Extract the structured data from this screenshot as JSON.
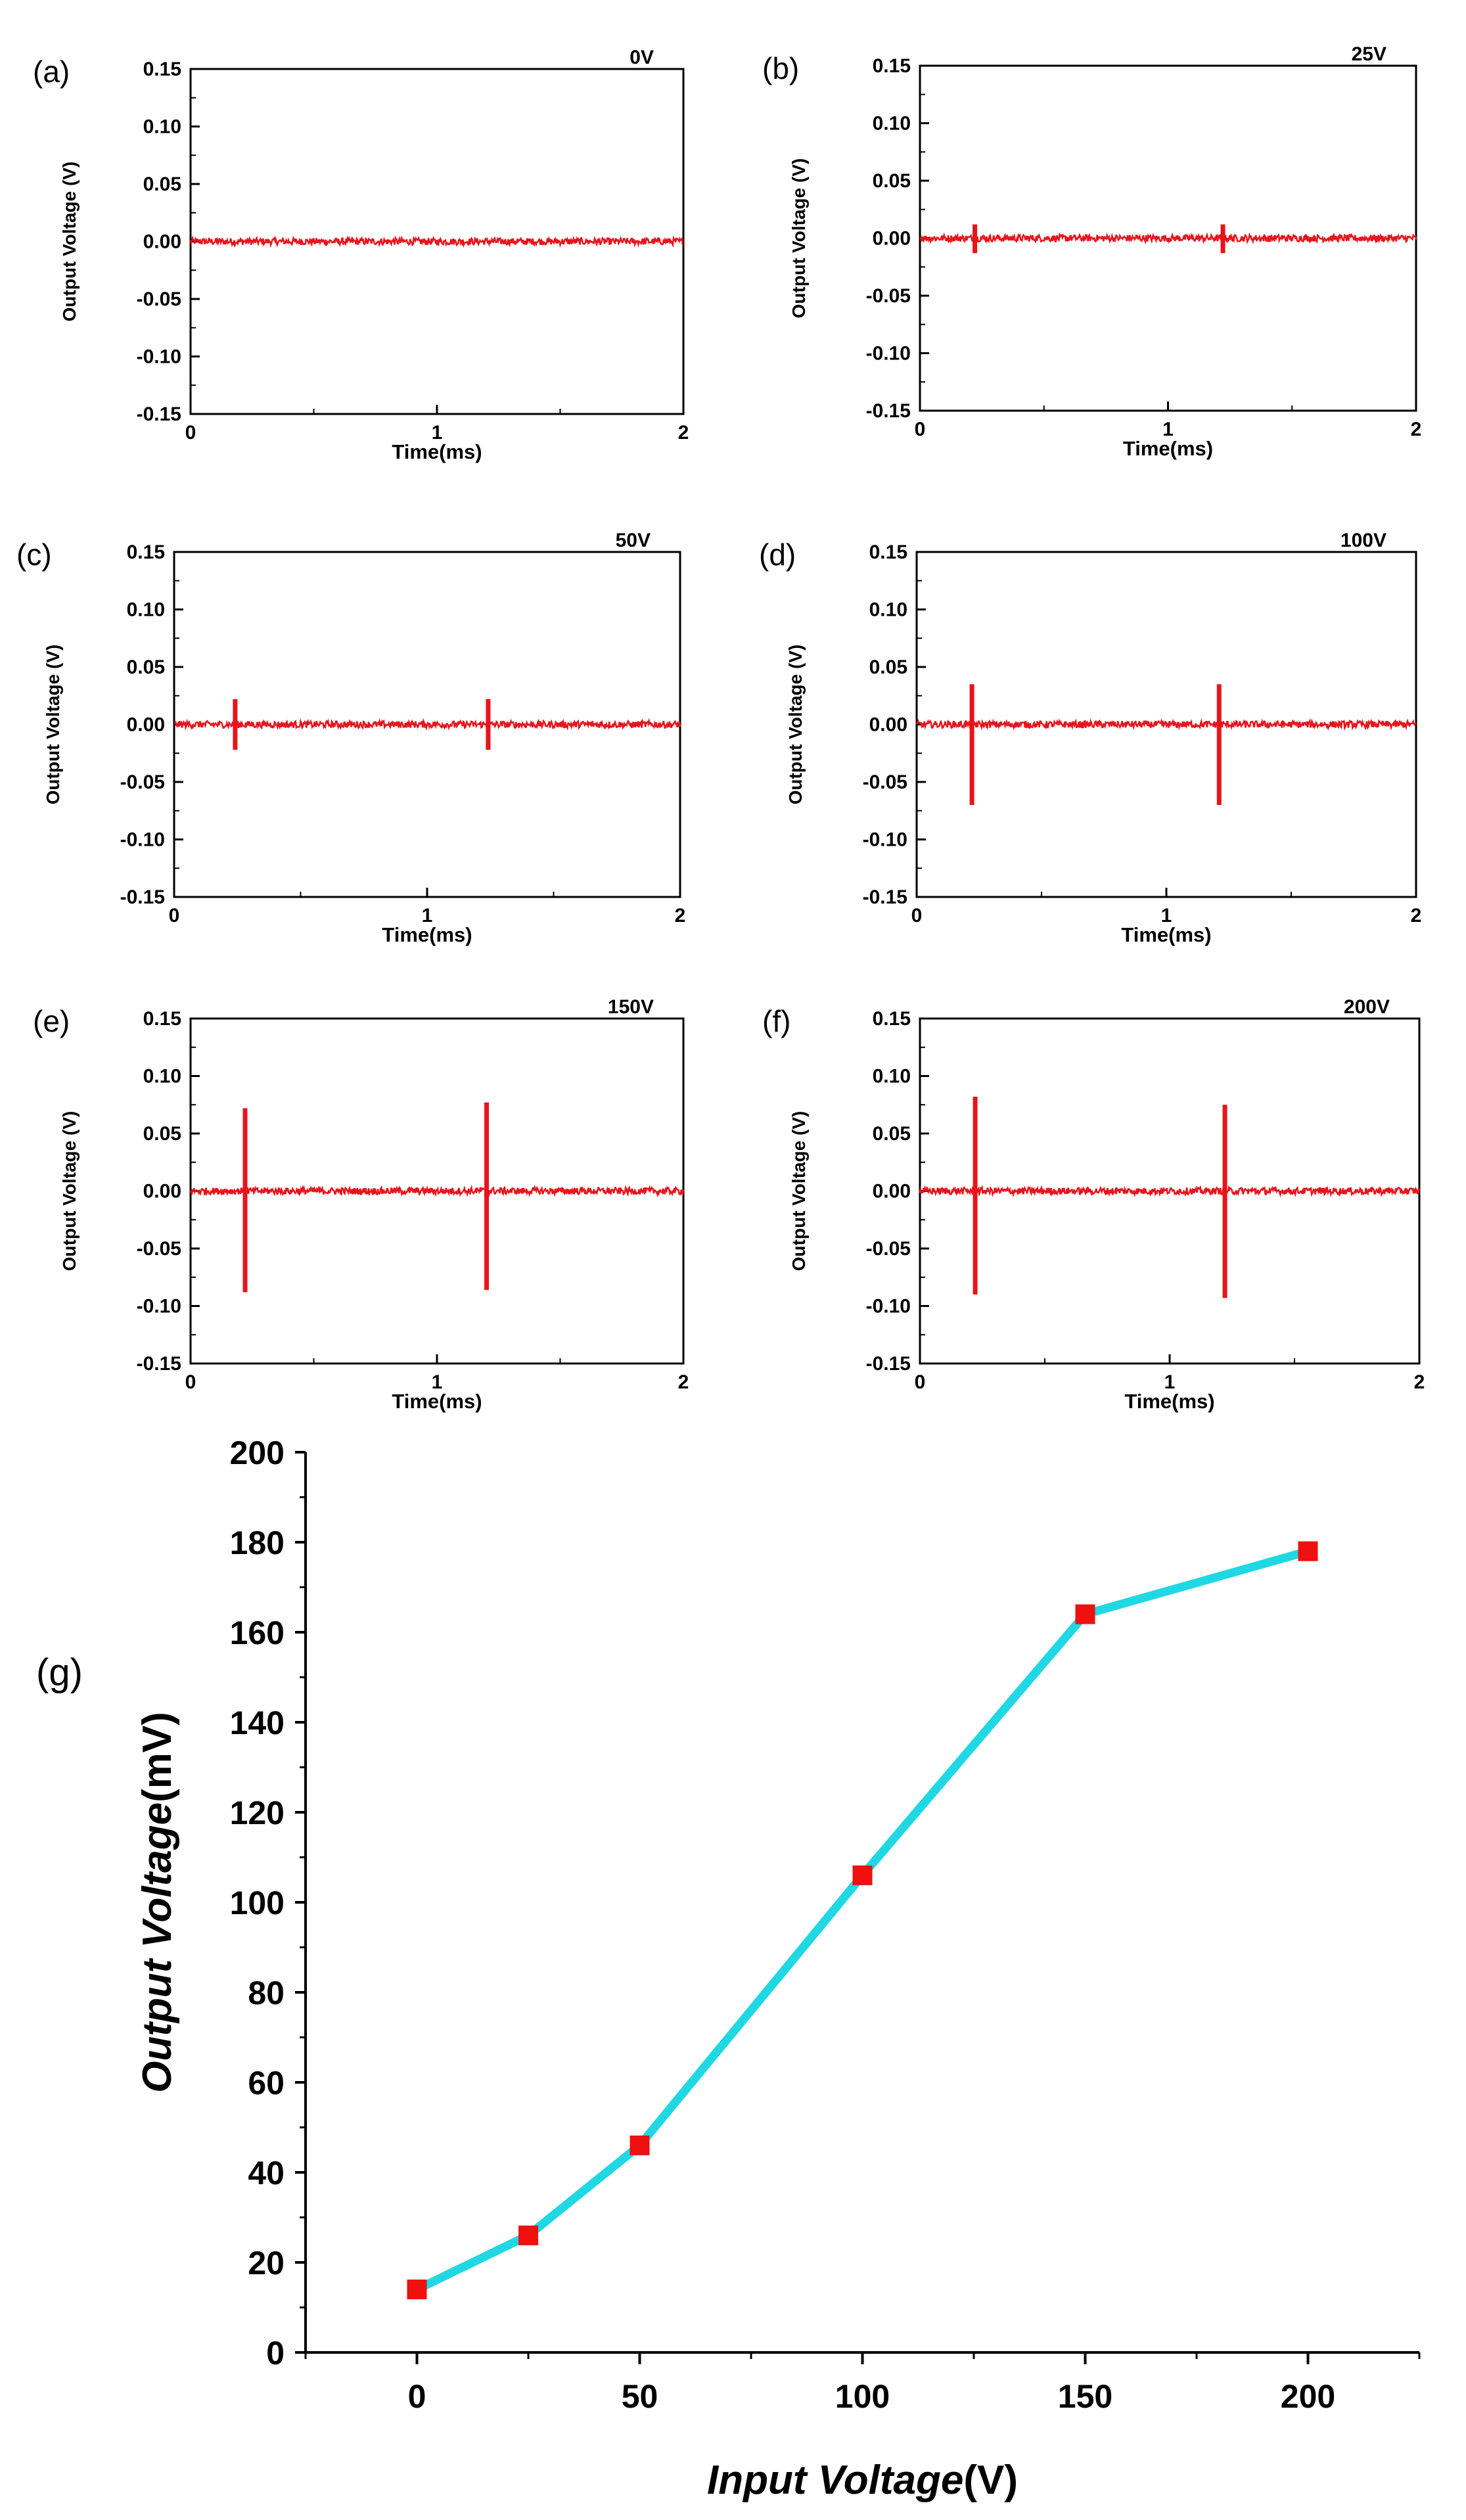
{
  "chart_data": [
    {
      "panel": "(a)",
      "type": "line",
      "annotation": "0V",
      "xlabel": "Time(ms)",
      "ylabel": "Output Voltage (V)",
      "xlim": [
        0,
        2
      ],
      "ylim": [
        -0.15,
        0.15
      ],
      "xticks": [
        "0",
        "1",
        "2"
      ],
      "yticks": [
        "0.15",
        "0.10",
        "0.05",
        "0.00",
        "-0.05",
        "-0.10",
        "-0.15"
      ],
      "baseline": 0.0,
      "noise": 0.003,
      "pulses": [],
      "color": "#e8141c"
    },
    {
      "panel": "(b)",
      "type": "line",
      "annotation": "25V",
      "xlabel": "Time(ms)",
      "ylabel": "Output Voltage (V)",
      "xlim": [
        0,
        2
      ],
      "ylim": [
        -0.15,
        0.15
      ],
      "xticks": [
        "0",
        "1",
        "2"
      ],
      "yticks": [
        "0.15",
        "0.10",
        "0.05",
        "0.00",
        "-0.05",
        "-0.10",
        "-0.15"
      ],
      "baseline": 0.0,
      "noise": 0.003,
      "pulses": [
        {
          "t": 0.22,
          "max": 0.012,
          "min": -0.013
        },
        {
          "t": 1.22,
          "max": 0.012,
          "min": -0.013
        }
      ],
      "color": "#e8141c"
    },
    {
      "panel": "(c)",
      "type": "line",
      "annotation": "50V",
      "xlabel": "Time(ms)",
      "ylabel": "Output Voltage (V)",
      "xlim": [
        0,
        2
      ],
      "ylim": [
        -0.15,
        0.15
      ],
      "xticks": [
        "0",
        "1",
        "2"
      ],
      "yticks": [
        "0.15",
        "0.10",
        "0.05",
        "0.00",
        "-0.05",
        "-0.10",
        "-0.15"
      ],
      "baseline": 0.0,
      "noise": 0.003,
      "pulses": [
        {
          "t": 0.24,
          "max": 0.022,
          "min": -0.022
        },
        {
          "t": 1.24,
          "max": 0.022,
          "min": -0.022
        }
      ],
      "color": "#e8141c"
    },
    {
      "panel": "(d)",
      "type": "line",
      "annotation": "100V",
      "xlabel": "Time(ms)",
      "ylabel": "Output Voltage (V)",
      "xlim": [
        0,
        2
      ],
      "ylim": [
        -0.15,
        0.15
      ],
      "xticks": [
        "0",
        "1",
        "2"
      ],
      "yticks": [
        "0.15",
        "0.10",
        "0.05",
        "0.00",
        "-0.05",
        "-0.10",
        "-0.15"
      ],
      "baseline": 0.0,
      "noise": 0.003,
      "pulses": [
        {
          "t": 0.22,
          "max": 0.035,
          "min": -0.07
        },
        {
          "t": 1.21,
          "max": 0.035,
          "min": -0.07
        }
      ],
      "color": "#e8141c"
    },
    {
      "panel": "(e)",
      "type": "line",
      "annotation": "150V",
      "xlabel": "Time(ms)",
      "ylabel": "Output Voltage (V)",
      "xlim": [
        0,
        2
      ],
      "ylim": [
        -0.15,
        0.15
      ],
      "xticks": [
        "0",
        "1",
        "2"
      ],
      "yticks": [
        "0.15",
        "0.10",
        "0.05",
        "0.00",
        "-0.05",
        "-0.10",
        "-0.15"
      ],
      "baseline": 0.0,
      "noise": 0.003,
      "pulses": [
        {
          "t": 0.22,
          "max": 0.072,
          "min": -0.088
        },
        {
          "t": 1.2,
          "max": 0.077,
          "min": -0.086
        }
      ],
      "color": "#e8141c"
    },
    {
      "panel": "(f)",
      "type": "line",
      "annotation": "200V",
      "xlabel": "Time(ms)",
      "ylabel": "Output Voltage (V)",
      "xlim": [
        0,
        2
      ],
      "ylim": [
        -0.15,
        0.15
      ],
      "xticks": [
        "0",
        "1",
        "2"
      ],
      "yticks": [
        "0.15",
        "0.10",
        "0.05",
        "0.00",
        "-0.05",
        "-0.10",
        "-0.15"
      ],
      "baseline": 0.0,
      "noise": 0.003,
      "pulses": [
        {
          "t": 0.22,
          "max": 0.082,
          "min": -0.09
        },
        {
          "t": 1.22,
          "max": 0.075,
          "min": -0.093
        }
      ],
      "color": "#e8141c"
    },
    {
      "panel": "(g)",
      "type": "line",
      "xlabel_italic": "Input Voltage",
      "xlabel_unit": "(V)",
      "ylabel_italic": "Output Voltage",
      "ylabel_unit": "(mV)",
      "x": [
        0,
        25,
        50,
        100,
        150,
        200
      ],
      "y": [
        14,
        26,
        46,
        106,
        164,
        178
      ],
      "xlim": [
        -25,
        225
      ],
      "ylim": [
        0,
        200
      ],
      "xticks": [
        0,
        50,
        100,
        150,
        200
      ],
      "yticks": [
        0,
        20,
        40,
        60,
        80,
        100,
        120,
        140,
        160,
        180,
        200
      ],
      "line_color": "#1fd8e3",
      "marker_color": "#f01010",
      "marker": "square"
    }
  ]
}
